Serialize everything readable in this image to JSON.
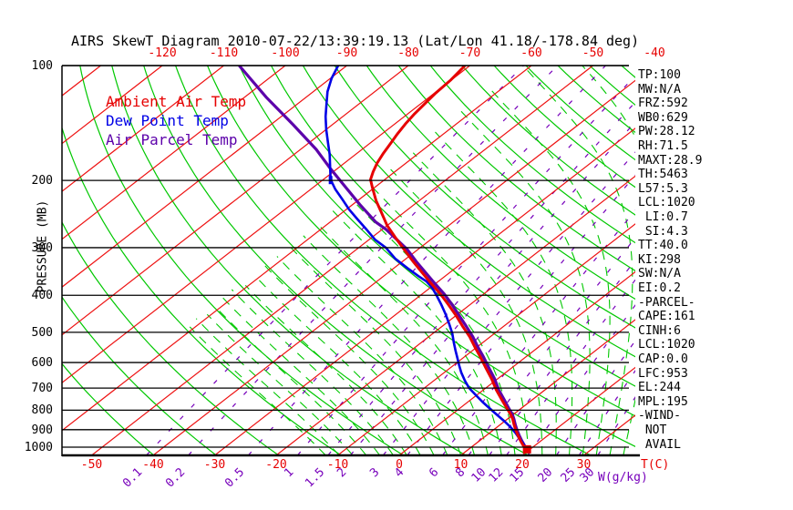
{
  "title": "AIRS SkewT Diagram 2010-07-22/13:39:19.13 (Lat/Lon 41.18/-178.84 deg)",
  "axes": {
    "pressure_label": "PRESSURE (MB)",
    "pressure_ticks": [
      100,
      200,
      300,
      400,
      500,
      600,
      700,
      800,
      900,
      1000
    ],
    "top_temp_ticks": [
      -120,
      -110,
      -100,
      -90,
      -80,
      -70,
      -60,
      -50,
      -40
    ],
    "bottom_temp_ticks": [
      -50,
      -40,
      -30,
      -20,
      -10,
      0,
      10,
      20,
      30
    ],
    "temp_unit_label": "T(C)",
    "mixing_unit_label": "W(g/kg)",
    "mixing_ratio_ticks": [
      0.1,
      0.2,
      0.5,
      1,
      1.5,
      2,
      3,
      4,
      6,
      8,
      10,
      12,
      15,
      20,
      25,
      30
    ]
  },
  "legend": [
    {
      "label": "Ambient Air Temp",
      "color": "#e60000"
    },
    {
      "label": "Dew Point Temp",
      "color": "#0000e6"
    },
    {
      "label": "Air Parcel Temp",
      "color": "#5c00aa"
    }
  ],
  "stats": [
    "TP:100",
    "MW:N/A",
    "FRZ:592",
    "WB0:629",
    "PW:28.12",
    "RH:71.5",
    "MAXT:28.9",
    "TH:5463",
    "L57:5.3",
    "LCL:1020",
    " LI:0.7",
    " SI:4.3",
    "TT:40.0",
    "KI:298",
    "SW:N/A",
    "EI:0.2",
    "-PARCEL-",
    "CAPE:161",
    "CINH:6",
    "LCL:1020",
    "CAP:0.0",
    "LFC:953",
    "EL:244",
    "MPL:195",
    "-WIND-",
    " NOT",
    " AVAIL"
  ],
  "chart_data": {
    "type": "skewt",
    "title": "AIRS SkewT Diagram 2010-07-22/13:39:19.13 (Lat/Lon 41.18/-178.84 deg)",
    "pressure_axis": {
      "label": "PRESSURE (MB)",
      "range": [
        100,
        1050
      ],
      "scale": "log",
      "gridlines_mb": [
        100,
        200,
        300,
        400,
        500,
        600,
        700,
        800,
        900,
        1000
      ]
    },
    "temp_axis": {
      "unit": "C",
      "bottom_labels": [
        -50,
        -40,
        -30,
        -20,
        -10,
        0,
        10,
        20,
        30
      ],
      "top_labels": [
        -120,
        -110,
        -100,
        -90,
        -80,
        -70,
        -60,
        -50,
        -40
      ],
      "skew_deg_per_plot_height": 81.5
    },
    "background_lines": {
      "isotherms": {
        "color": "#ee1111",
        "style": "solid",
        "min_c": -150,
        "max_c": 30,
        "step_c": 10
      },
      "dry_adiabats": {
        "color": "#00c800",
        "style": "solid",
        "theta_min_k": 230,
        "theta_max_k": 450,
        "step_k": 10
      },
      "moist_adiabats": {
        "color": "#00c800",
        "style": "dashed",
        "start_temp_min_c": -12,
        "start_temp_max_c": 58,
        "step_c": 2.2,
        "cutoff_temp_c": -62
      },
      "mixing_ratio": {
        "color": "#7700bb",
        "style": "dashed",
        "values_g_kg": [
          0.1,
          0.2,
          0.5,
          1,
          1.5,
          2,
          3,
          4,
          6,
          8,
          10,
          12,
          15,
          20,
          25,
          30
        ]
      }
    },
    "series": [
      {
        "name": "Ambient Air Temp",
        "color": "#e60000",
        "width": 3,
        "points_p_t": [
          [
            100,
            -70.8
          ],
          [
            109,
            -70.1
          ],
          [
            118,
            -69.8
          ],
          [
            125,
            -69.4
          ],
          [
            134,
            -68.9
          ],
          [
            142,
            -68.3
          ],
          [
            151,
            -67.5
          ],
          [
            160,
            -66.6
          ],
          [
            170,
            -65.7
          ],
          [
            180,
            -64.7
          ],
          [
            190,
            -63.5
          ],
          [
            199,
            -62.3
          ],
          [
            209,
            -60.3
          ],
          [
            226,
            -57.0
          ],
          [
            242,
            -53.8
          ],
          [
            262,
            -50.1
          ],
          [
            281,
            -46.4
          ],
          [
            303,
            -42.3
          ],
          [
            326,
            -38.3
          ],
          [
            348,
            -34.6
          ],
          [
            372,
            -30.8
          ],
          [
            397,
            -27.0
          ],
          [
            424,
            -23.4
          ],
          [
            451,
            -20.1
          ],
          [
            482,
            -16.7
          ],
          [
            514,
            -13.3
          ],
          [
            546,
            -10.4
          ],
          [
            580,
            -7.4
          ],
          [
            620,
            -4.2
          ],
          [
            662,
            -1.0
          ],
          [
            708,
            2.1
          ],
          [
            752,
            5.1
          ],
          [
            790,
            7.6
          ],
          [
            820,
            9.5
          ],
          [
            843,
            10.8
          ],
          [
            872,
            12.2
          ],
          [
            901,
            13.6
          ],
          [
            931,
            15.1
          ],
          [
            963,
            16.7
          ],
          [
            990,
            18.1
          ],
          [
            1011,
            19.3
          ]
        ]
      },
      {
        "name": "Dew Point Temp",
        "color": "#0000e6",
        "width": 2.6,
        "points_p_t": [
          [
            100,
            -91.4
          ],
          [
            108,
            -89.8
          ],
          [
            117,
            -87.7
          ],
          [
            126,
            -85.3
          ],
          [
            136,
            -82.8
          ],
          [
            147,
            -80.0
          ],
          [
            159,
            -77.0
          ],
          [
            171,
            -74.2
          ],
          [
            185,
            -71.4
          ],
          [
            199,
            -68.8
          ],
          [
            211,
            -66.0
          ],
          [
            224,
            -62.8
          ],
          [
            238,
            -59.6
          ],
          [
            253,
            -56.1
          ],
          [
            269,
            -52.5
          ],
          [
            286,
            -49.0
          ],
          [
            300,
            -45.6
          ],
          [
            321,
            -41.7
          ],
          [
            339,
            -37.9
          ],
          [
            356,
            -34.4
          ],
          [
            368,
            -31.9
          ],
          [
            382,
            -29.7
          ],
          [
            400,
            -27.4
          ],
          [
            422,
            -24.8
          ],
          [
            448,
            -22.0
          ],
          [
            476,
            -19.3
          ],
          [
            503,
            -16.9
          ],
          [
            532,
            -14.7
          ],
          [
            559,
            -12.7
          ],
          [
            584,
            -10.9
          ],
          [
            610,
            -9.1
          ],
          [
            638,
            -7.2
          ],
          [
            670,
            -4.9
          ],
          [
            700,
            -2.7
          ],
          [
            731,
            -0.1
          ],
          [
            764,
            2.6
          ],
          [
            794,
            5.1
          ],
          [
            825,
            7.6
          ],
          [
            853,
            9.8
          ],
          [
            886,
            12.2
          ],
          [
            916,
            14.1
          ],
          [
            947,
            15.9
          ],
          [
            978,
            17.7
          ],
          [
            1006,
            18.9
          ]
        ]
      },
      {
        "name": "Air Parcel Temp",
        "color": "#5c00aa",
        "width": 3.2,
        "points_p_t": [
          [
            100,
            -107.5
          ],
          [
            121,
            -96.5
          ],
          [
            143,
            -86.3
          ],
          [
            166,
            -77.4
          ],
          [
            186,
            -71.2
          ],
          [
            206,
            -65.4
          ],
          [
            231,
            -58.9
          ],
          [
            257,
            -52.6
          ],
          [
            269,
            -49.3
          ],
          [
            303,
            -41.8
          ],
          [
            326,
            -37.8
          ],
          [
            372,
            -30.2
          ],
          [
            397,
            -26.4
          ],
          [
            424,
            -22.8
          ],
          [
            451,
            -19.6
          ],
          [
            482,
            -16.1
          ],
          [
            514,
            -12.8
          ],
          [
            546,
            -9.9
          ],
          [
            580,
            -6.9
          ],
          [
            620,
            -3.7
          ],
          [
            662,
            -0.5
          ],
          [
            708,
            2.5
          ],
          [
            752,
            5.5
          ],
          [
            790,
            7.9
          ],
          [
            820,
            9.8
          ],
          [
            843,
            11.0
          ],
          [
            872,
            12.4
          ],
          [
            901,
            13.8
          ],
          [
            931,
            15.3
          ],
          [
            963,
            16.9
          ],
          [
            990,
            18.3
          ],
          [
            1011,
            19.4
          ]
        ]
      }
    ],
    "markers": [
      {
        "name": "surface-temp-marker",
        "color": "#e60000",
        "p": 1013,
        "t": 19.5,
        "shape": "square"
      },
      {
        "name": "dewpoint-200mb-marker",
        "color": "#0000e6",
        "p": 199,
        "t": -68.8,
        "shape": "tick"
      }
    ]
  }
}
